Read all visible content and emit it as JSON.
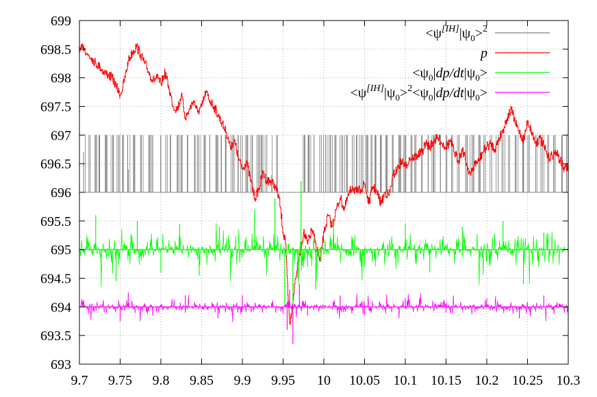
{
  "chart_data": {
    "type": "line",
    "title": "",
    "xlabel": "",
    "ylabel": "",
    "xlim": [
      9.7,
      10.3
    ],
    "ylim": [
      693,
      699
    ],
    "grid": true,
    "legend_position": "top-right",
    "x_ticks": [
      "9.7",
      "9.75",
      "9.8",
      "9.85",
      "9.9",
      "9.95",
      "10",
      "10.05",
      "10.1",
      "10.15",
      "10.2",
      "10.25",
      "10.3"
    ],
    "y_ticks": [
      "693",
      "693.5",
      "694",
      "694.5",
      "695",
      "695.5",
      "696",
      "696.5",
      "697",
      "697.5",
      "698",
      "698.5",
      "699"
    ],
    "series": [
      {
        "name": "<ψ[IH]|ψ0>2",
        "legend_parts": {
          "pre": "<ψ",
          "sup1": "[IH]",
          "mid": "|ψ",
          "sub": "0",
          "post": ">",
          "sup2": "2"
        },
        "color": "#808080",
        "baseline": 696,
        "spike_level": 697,
        "x": [
          9.705,
          9.713,
          9.72,
          9.724,
          9.733,
          9.741,
          9.748,
          9.753,
          9.76,
          9.768,
          9.776,
          9.785,
          9.79,
          9.8,
          9.806,
          9.812,
          9.82,
          9.826,
          9.833,
          9.842,
          9.846,
          9.853,
          9.86,
          9.868,
          9.874,
          9.88,
          9.888,
          9.895,
          9.9,
          9.906,
          9.912,
          9.918,
          9.924,
          9.93,
          9.936,
          9.942,
          9.976,
          9.982,
          9.988,
          9.995,
          10.002,
          10.008,
          10.015,
          10.022,
          10.028,
          10.035,
          10.04,
          10.046,
          10.052,
          10.058,
          10.064,
          10.07,
          10.077,
          10.085,
          10.092,
          10.1,
          10.107,
          10.113,
          10.12,
          10.128,
          10.135,
          10.143,
          10.15,
          10.158,
          10.166,
          10.174,
          10.182,
          10.19,
          10.198,
          10.206,
          10.214,
          10.22,
          10.228,
          10.236,
          10.244,
          10.252,
          10.26,
          10.268,
          10.276,
          10.284,
          10.292,
          10.298
        ],
        "values": [
          696.7,
          697,
          697,
          697,
          697,
          697,
          697,
          697,
          696.4,
          697,
          697,
          697,
          697,
          696.5,
          697,
          697,
          697,
          697,
          697,
          697,
          697,
          697,
          697,
          697,
          697,
          697,
          697,
          697,
          697,
          697,
          697,
          697,
          697,
          697,
          696.3,
          697,
          697,
          697,
          697,
          697,
          697,
          697,
          697,
          697,
          697,
          697,
          697,
          697,
          697,
          697,
          697,
          697,
          697,
          697,
          697,
          697,
          697,
          697,
          697,
          697,
          697,
          697,
          697,
          697,
          697,
          697,
          697,
          697,
          697,
          697,
          697,
          697,
          697,
          697,
          697,
          697,
          697,
          697,
          697,
          697,
          697,
          697
        ]
      },
      {
        "name": "p",
        "color": "#ff0000",
        "x": [
          9.7,
          9.705,
          9.71,
          9.715,
          9.72,
          9.725,
          9.73,
          9.735,
          9.74,
          9.745,
          9.75,
          9.755,
          9.76,
          9.765,
          9.77,
          9.775,
          9.78,
          9.785,
          9.79,
          9.795,
          9.8,
          9.805,
          9.81,
          9.815,
          9.82,
          9.825,
          9.83,
          9.835,
          9.84,
          9.845,
          9.85,
          9.855,
          9.86,
          9.865,
          9.87,
          9.875,
          9.88,
          9.885,
          9.89,
          9.895,
          9.9,
          9.905,
          9.91,
          9.915,
          9.92,
          9.925,
          9.93,
          9.935,
          9.94,
          9.945,
          9.95,
          9.953,
          9.956,
          9.958,
          9.961,
          9.965,
          9.97,
          9.975,
          9.98,
          9.985,
          9.99,
          9.995,
          10,
          10.005,
          10.01,
          10.015,
          10.02,
          10.025,
          10.03,
          10.035,
          10.04,
          10.045,
          10.05,
          10.055,
          10.06,
          10.065,
          10.07,
          10.075,
          10.08,
          10.085,
          10.09,
          10.095,
          10.1,
          10.105,
          10.11,
          10.115,
          10.12,
          10.125,
          10.13,
          10.135,
          10.14,
          10.145,
          10.15,
          10.155,
          10.16,
          10.165,
          10.17,
          10.175,
          10.18,
          10.185,
          10.19,
          10.195,
          10.2,
          10.205,
          10.21,
          10.215,
          10.22,
          10.225,
          10.23,
          10.235,
          10.24,
          10.245,
          10.25,
          10.255,
          10.26,
          10.265,
          10.27,
          10.275,
          10.28,
          10.285,
          10.29,
          10.295,
          10.3
        ],
        "values": [
          698.45,
          698.55,
          698.4,
          698.35,
          698.25,
          698.2,
          698.1,
          698.05,
          698.0,
          697.85,
          697.7,
          697.95,
          698.3,
          698.45,
          698.55,
          698.4,
          698.25,
          698.1,
          697.95,
          698.0,
          697.9,
          698.1,
          697.8,
          697.5,
          697.45,
          697.7,
          697.3,
          697.45,
          697.6,
          697.4,
          697.5,
          697.75,
          697.6,
          697.5,
          697.35,
          697.2,
          697.05,
          696.8,
          696.9,
          696.6,
          696.4,
          696.55,
          696.2,
          695.9,
          696.05,
          696.35,
          696.2,
          696.2,
          696.1,
          695.9,
          695.3,
          695.1,
          694.2,
          693.7,
          694.0,
          694.5,
          694.9,
          695.3,
          695.1,
          695.35,
          695.1,
          694.8,
          695.3,
          695.6,
          695.4,
          695.7,
          695.9,
          695.7,
          695.95,
          696.1,
          696.0,
          696.05,
          696.15,
          695.8,
          696.1,
          696.0,
          695.8,
          696.0,
          695.95,
          696.3,
          696.4,
          696.55,
          696.45,
          696.6,
          696.6,
          696.65,
          696.7,
          696.85,
          696.8,
          696.9,
          696.95,
          696.85,
          696.8,
          696.9,
          696.7,
          696.55,
          696.75,
          696.5,
          696.3,
          696.5,
          696.55,
          696.7,
          696.8,
          696.85,
          696.75,
          696.95,
          697.1,
          697.3,
          697.45,
          697.2,
          697.05,
          696.9,
          697.25,
          697.05,
          696.85,
          696.95,
          696.8,
          696.6,
          696.65,
          696.7,
          696.55,
          696.4,
          696.45
        ]
      },
      {
        "name": "<ψ0|dp/dt|ψ0>",
        "legend_parts": {
          "pre": "<ψ",
          "sub": "0",
          "mid": "|",
          "ital": "dp/dt",
          "mid2": "|ψ",
          "sub2": "0",
          "post": ">"
        },
        "color": "#00ff00",
        "baseline": 695,
        "noise_amplitude": 0.3,
        "x": [
          9.72,
          9.745,
          9.771,
          9.8,
          9.823,
          9.847,
          9.872,
          9.915,
          9.94,
          9.952,
          9.957,
          9.962,
          9.968,
          9.972,
          9.98,
          9.99,
          10.012,
          10.05,
          10.1,
          10.13,
          10.17,
          10.2,
          10.22,
          10.245,
          10.27
        ],
        "values": [
          695.6,
          694.45,
          695.5,
          694.6,
          695.45,
          694.55,
          695.4,
          695.7,
          695.9,
          694.0,
          695.1,
          693.7,
          694.5,
          696.2,
          694.7,
          694.3,
          695.55,
          694.7,
          695.45,
          694.6,
          695.4,
          694.8,
          695.5,
          694.4,
          695.3
        ]
      },
      {
        "name": "<ψ[IH]|ψ0>2<ψ0|dp/dt|ψ0>",
        "color": "#ff00ff",
        "baseline": 694,
        "noise_amplitude": 0.12,
        "x": [
          9.75,
          9.76,
          9.79,
          9.83,
          9.87,
          9.9,
          9.955,
          9.958,
          9.962,
          9.97,
          9.98,
          10.02,
          10.05,
          10.1,
          10.15,
          10.2,
          10.24,
          10.27,
          10.29
        ],
        "values": [
          693.75,
          694.25,
          693.85,
          694.2,
          693.8,
          694.2,
          693.6,
          694.3,
          693.35,
          694.4,
          693.85,
          694.2,
          693.85,
          694.15,
          693.9,
          694.15,
          693.8,
          694.2,
          694.05
        ]
      }
    ]
  }
}
